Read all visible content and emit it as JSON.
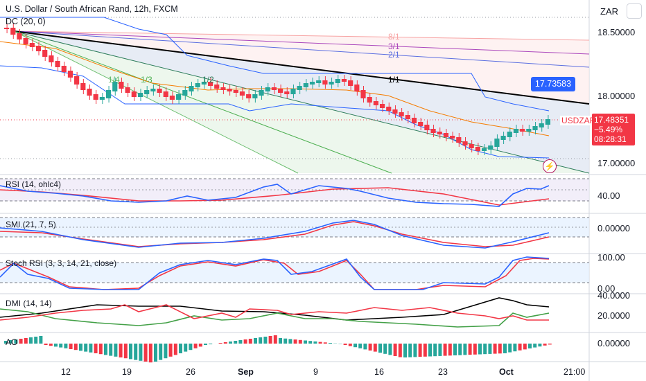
{
  "header": {
    "title": "U.S. Dollar / South African Rand, 12h, FXCM",
    "currency": "ZAR"
  },
  "main_price_axis": [
    "18.50000",
    "18.00000",
    "17.00000"
  ],
  "time_axis": [
    {
      "label": "12",
      "bold": false
    },
    {
      "label": "19",
      "bold": false
    },
    {
      "label": "26",
      "bold": false
    },
    {
      "label": "Sep",
      "bold": true
    },
    {
      "label": "9",
      "bold": false
    },
    {
      "label": "16",
      "bold": false
    },
    {
      "label": "23",
      "bold": false
    },
    {
      "label": "Oct",
      "bold": true
    },
    {
      "label": "21:00",
      "bold": false
    }
  ],
  "overlay": {
    "dc_label": "DC (20, 0)",
    "fan_labels": [
      "1/4",
      "1/3",
      "1/2",
      "1/1",
      "2/1",
      "3/1",
      "8/1"
    ],
    "trendline_value": "17.73583",
    "symbol_tag": "USDZAR",
    "last_price": "17.48351",
    "change": "−5.49%",
    "countdown": "08:28:31"
  },
  "indicators": {
    "rsi": {
      "label": "RSI (14, ohlc4)",
      "axis": [
        "40.00"
      ]
    },
    "smi": {
      "label": "SMI (21, 7, 5)",
      "axis": [
        "0.00000"
      ]
    },
    "stoch": {
      "label": "Stoch RSI (3, 3, 14, 21, close)",
      "axis": [
        "100.00",
        "0.00"
      ]
    },
    "dmi": {
      "label": "DMI (14, 14)",
      "axis": [
        "40.0000",
        "20.0000"
      ]
    },
    "ao": {
      "label": "AO",
      "axis": [
        "0.00000"
      ]
    }
  },
  "colors": {
    "up": "#26a69a",
    "down": "#f23645",
    "donchian": "#2962ff",
    "basis": "#f57c00",
    "rsi": "#2962ff",
    "rsi_ma": "#f23645",
    "dmi_adx": "#000000",
    "dmi_plus": "#43a047",
    "dmi_minus": "#f23645"
  }
}
